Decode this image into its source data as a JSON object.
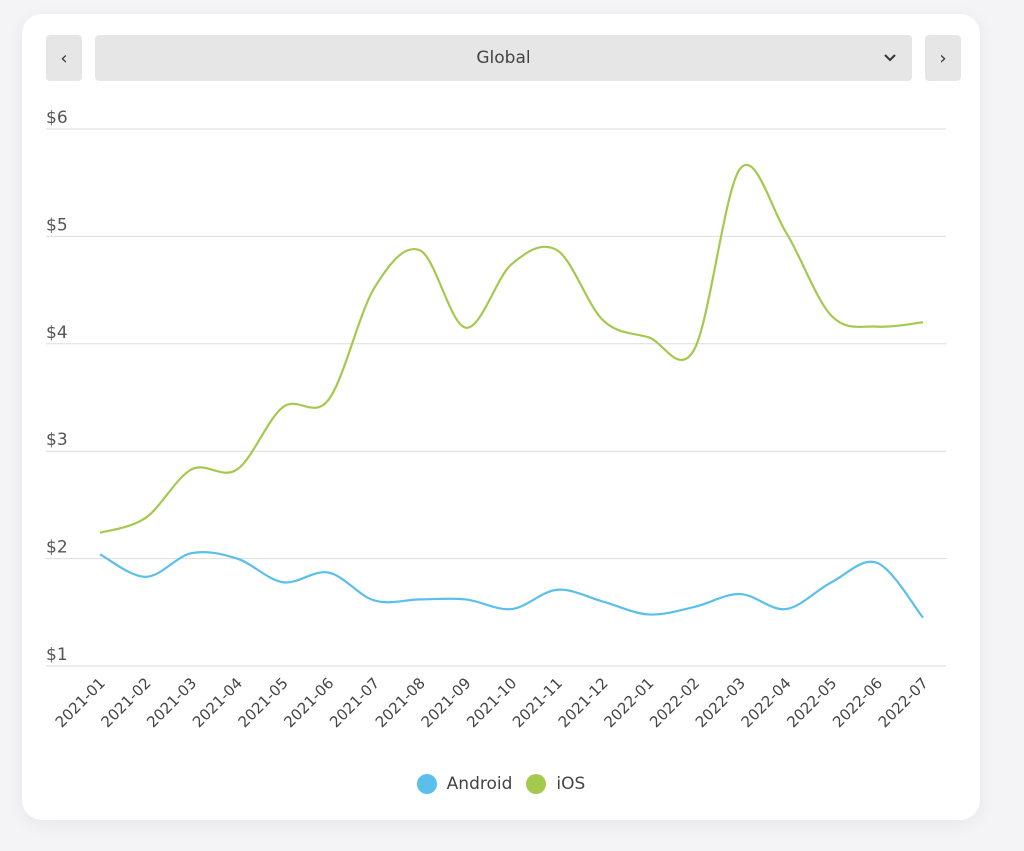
{
  "controls": {
    "prev_icon": "chevron-left-icon",
    "next_icon": "chevron-right-icon",
    "prev_glyph": "‹",
    "next_glyph": "›",
    "region_selected": "Global"
  },
  "chart_data": {
    "type": "line",
    "title": "",
    "xlabel": "",
    "ylabel": "",
    "ylim": [
      1,
      6
    ],
    "yticks": [
      "$1",
      "$2",
      "$3",
      "$4",
      "$5",
      "$6"
    ],
    "ytick_values": [
      1,
      2,
      3,
      4,
      5,
      6
    ],
    "grid": true,
    "legend_placement": "bottom-center",
    "categories": [
      "2021-01",
      "2021-02",
      "2021-03",
      "2021-04",
      "2021-05",
      "2021-06",
      "2021-07",
      "2021-08",
      "2021-09",
      "2021-10",
      "2021-11",
      "2021-12",
      "2022-01",
      "2022-02",
      "2022-03",
      "2022-04",
      "2022-05",
      "2022-06",
      "2022-07"
    ],
    "series": [
      {
        "name": "Android",
        "color": "#5bbfec",
        "values": [
          2.04,
          1.83,
          2.05,
          2.0,
          1.78,
          1.87,
          1.61,
          1.62,
          1.62,
          1.53,
          1.71,
          1.6,
          1.48,
          1.55,
          1.67,
          1.53,
          1.78,
          1.96,
          1.45
        ]
      },
      {
        "name": "iOS",
        "color": "#a4c94f",
        "values": [
          2.24,
          2.38,
          2.83,
          2.83,
          3.41,
          3.48,
          4.52,
          4.87,
          4.15,
          4.74,
          4.87,
          4.22,
          4.06,
          3.95,
          5.63,
          5.04,
          4.26,
          4.16,
          4.2
        ]
      }
    ]
  }
}
